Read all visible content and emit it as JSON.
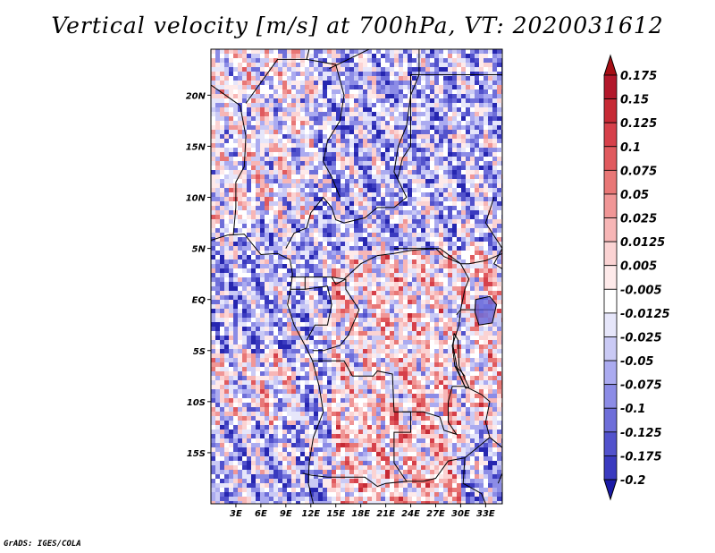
{
  "title": "Vertical velocity [m/s] at 700hPa, VT: 2020031612",
  "credit": "GrADS: IGES/COLA",
  "map": {
    "lon_range": [
      0,
      35
    ],
    "lat_range": [
      -20,
      24.5
    ],
    "lat_ticks": [
      {
        "value": 20,
        "label": "20N"
      },
      {
        "value": 15,
        "label": "15N"
      },
      {
        "value": 10,
        "label": "10N"
      },
      {
        "value": 5,
        "label": "5N"
      },
      {
        "value": 0,
        "label": "EQ"
      },
      {
        "value": -5,
        "label": "5S"
      },
      {
        "value": -10,
        "label": "10S"
      },
      {
        "value": -15,
        "label": "15S"
      }
    ],
    "lon_ticks": [
      {
        "value": 3,
        "label": "3E"
      },
      {
        "value": 6,
        "label": "6E"
      },
      {
        "value": 9,
        "label": "9E"
      },
      {
        "value": 12,
        "label": "12E"
      },
      {
        "value": 15,
        "label": "15E"
      },
      {
        "value": 18,
        "label": "18E"
      },
      {
        "value": 21,
        "label": "21E"
      },
      {
        "value": 24,
        "label": "24E"
      },
      {
        "value": 27,
        "label": "27E"
      },
      {
        "value": 30,
        "label": "30E"
      },
      {
        "value": 33,
        "label": "33E"
      }
    ],
    "boundary_color": "#000000"
  },
  "colorbar": {
    "levels": [
      {
        "value": "0.175",
        "color": "#b2182b"
      },
      {
        "value": "0.15",
        "color": "#c62a35"
      },
      {
        "value": "0.125",
        "color": "#d6404a"
      },
      {
        "value": "0.1",
        "color": "#e05a5e"
      },
      {
        "value": "0.075",
        "color": "#e87776"
      },
      {
        "value": "0.05",
        "color": "#f09696"
      },
      {
        "value": "0.025",
        "color": "#f7b6b6"
      },
      {
        "value": "0.0125",
        "color": "#fbd3d3"
      },
      {
        "value": "0.005",
        "color": "#feeaea"
      },
      {
        "value": "-0.005",
        "color": "#ffffff"
      },
      {
        "value": "-0.0125",
        "color": "#e6e6fa"
      },
      {
        "value": "-0.025",
        "color": "#cacaf5"
      },
      {
        "value": "-0.05",
        "color": "#ababf0"
      },
      {
        "value": "-0.075",
        "color": "#8c8ce6"
      },
      {
        "value": "-0.1",
        "color": "#6e6ed9"
      },
      {
        "value": "-0.125",
        "color": "#5252cc"
      },
      {
        "value": "-0.175",
        "color": "#3a3abf"
      },
      {
        "value": "-0.2",
        "color": "#2626b0"
      }
    ],
    "top_color": "#a50f15",
    "bottom_color": "#1a1aa6"
  }
}
